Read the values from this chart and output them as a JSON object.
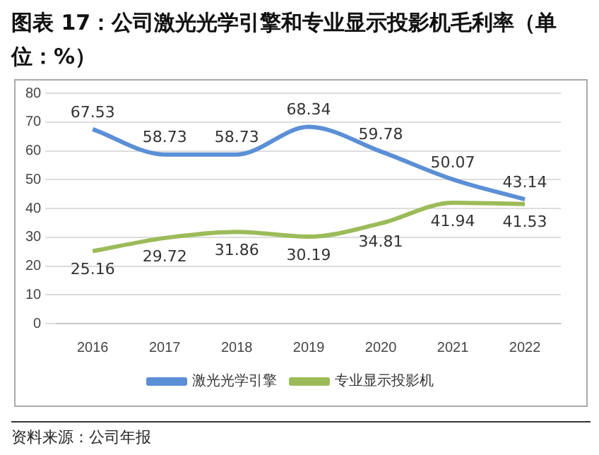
{
  "chart_data": {
    "type": "line",
    "title": "图表 17：公司激光光学引擎和专业显示投影机毛利率（单位：%）",
    "categories": [
      "2016",
      "2017",
      "2018",
      "2019",
      "2020",
      "2021",
      "2022"
    ],
    "series": [
      {
        "name": "激光光学引擎",
        "color": "#5b8fd6",
        "values": [
          67.53,
          58.73,
          58.73,
          68.34,
          59.78,
          50.07,
          43.14
        ]
      },
      {
        "name": "专业显示投影机",
        "color": "#9bbb59",
        "values": [
          25.16,
          29.72,
          31.86,
          30.19,
          34.81,
          41.94,
          41.53
        ]
      }
    ],
    "ylim": [
      0,
      80
    ],
    "yticks": [
      0,
      10,
      20,
      30,
      40,
      50,
      60,
      70,
      80
    ],
    "grid": "y",
    "legend": "bottom",
    "data_labels": true,
    "marker": "none",
    "line_style": "solid",
    "annotations": [
      "资料来源：公司年报"
    ]
  }
}
